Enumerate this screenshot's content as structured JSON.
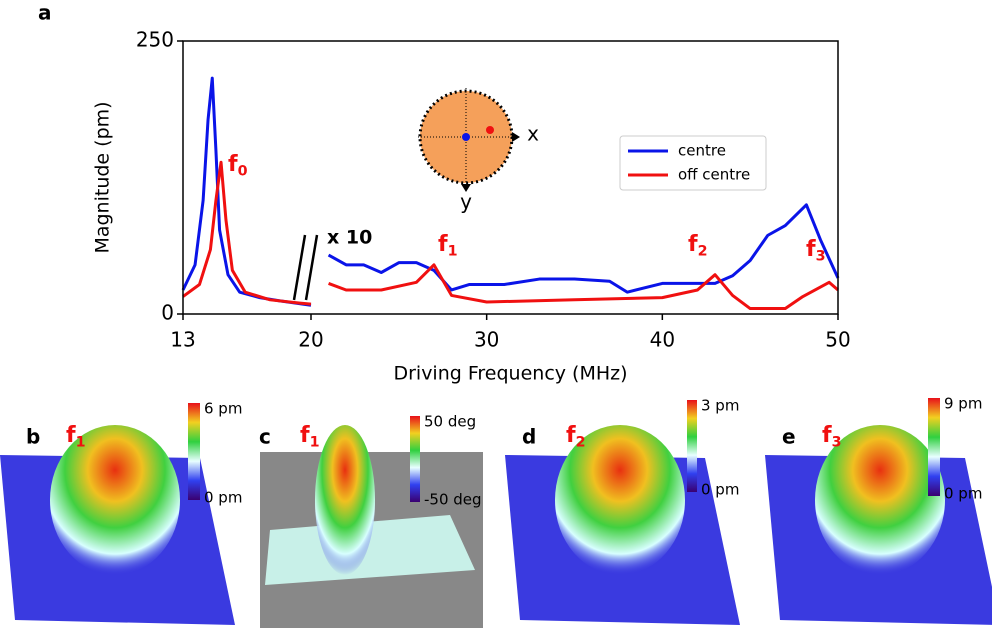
{
  "figure_label": "a",
  "chart_data": {
    "type": "line",
    "xlabel": "Driving Frequency (MHz)",
    "ylabel": "Magnitude (pm)",
    "xlim": [
      13,
      50
    ],
    "x_break": 20,
    "xticks": [
      13,
      20,
      30,
      40,
      50
    ],
    "ylim": [
      0,
      250
    ],
    "yticks": [
      0,
      250
    ],
    "legend": "upper right",
    "series": [
      {
        "name": "centre",
        "color": "#0a14e8",
        "x": [
          13,
          13.66,
          14.1,
          14.37,
          14.6,
          14.8,
          15.0,
          15.46,
          16.1,
          17.2,
          18.3,
          20,
          21,
          22,
          23,
          24,
          25,
          26,
          27,
          28,
          29,
          31,
          33,
          35,
          37,
          38,
          40,
          43,
          44,
          45,
          46,
          47,
          48.2,
          49,
          50
        ],
        "values": [
          22,
          45,
          104,
          178,
          216,
          150,
          77,
          36,
          20,
          15,
          12,
          8,
          54,
          45,
          45,
          38,
          47,
          47,
          40,
          22,
          27,
          27,
          32,
          32,
          30,
          20,
          28,
          28,
          35,
          49,
          72,
          81,
          100,
          68,
          33
        ]
      },
      {
        "name": "off centre",
        "color": "#f01010",
        "x": [
          13,
          13.9,
          14.5,
          14.8,
          15.08,
          15.35,
          15.7,
          16.4,
          17.76,
          19.4,
          20,
          21,
          22,
          24,
          26,
          27,
          28,
          30,
          35,
          40,
          42,
          43,
          44,
          45,
          47,
          48,
          49.5,
          50
        ],
        "values": [
          16,
          27,
          59,
          104,
          139,
          86,
          40,
          20,
          13,
          10,
          9,
          28,
          22,
          22,
          29,
          45,
          17,
          11,
          13,
          15,
          22,
          36,
          17,
          5,
          5,
          16,
          29,
          22
        ]
      }
    ],
    "annotations": [
      {
        "text": "f",
        "sub": "0"
      },
      {
        "text": "f",
        "sub": "1"
      },
      {
        "text": "f",
        "sub": "2"
      },
      {
        "text": "f",
        "sub": "3"
      }
    ],
    "scale_note": "x 10",
    "inset": {
      "x_label": "x",
      "y_label": "y"
    }
  },
  "panels": [
    {
      "label": "b",
      "title": "f",
      "sub": "1",
      "cbar_max": "6 pm",
      "cbar_min": "0 pm"
    },
    {
      "label": "c",
      "title": "f",
      "sub": "1",
      "cbar_max": "50 deg",
      "cbar_min": "-50 deg"
    },
    {
      "label": "d",
      "title": "f",
      "sub": "2",
      "cbar_max": "3 pm",
      "cbar_min": "0 pm"
    },
    {
      "label": "e",
      "title": "f",
      "sub": "3",
      "cbar_max": "9 pm",
      "cbar_min": "0 pm"
    }
  ]
}
